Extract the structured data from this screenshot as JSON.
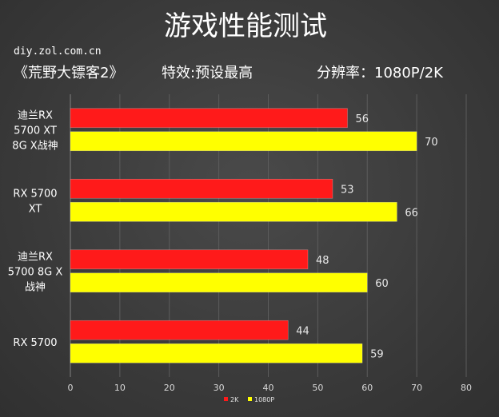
{
  "chart_data": {
    "type": "bar",
    "orientation": "horizontal",
    "title": "游戏性能测试",
    "site": "diy.zol.com.cn",
    "subtitle": {
      "game": "《荒野大镖客2》",
      "effects": "特效:预设最高",
      "resolution": "分辨率：1080P/2K"
    },
    "categories": [
      [
        "迪兰RX",
        "5700 XT",
        "8G X战神"
      ],
      [
        "RX 5700",
        "XT"
      ],
      [
        "迪兰RX",
        "5700 8G X",
        "战神"
      ],
      [
        "RX 5700"
      ]
    ],
    "series": [
      {
        "name": "2K",
        "color": "#ff1a1a",
        "values": [
          56,
          53,
          48,
          44
        ]
      },
      {
        "name": "1080P",
        "color": "#ffff00",
        "values": [
          70,
          66,
          60,
          59
        ]
      }
    ],
    "xlim": [
      0,
      80
    ],
    "xticks": [
      0,
      10,
      20,
      30,
      40,
      50,
      60,
      70,
      80
    ],
    "grid": true,
    "legend_position": "bottom"
  }
}
